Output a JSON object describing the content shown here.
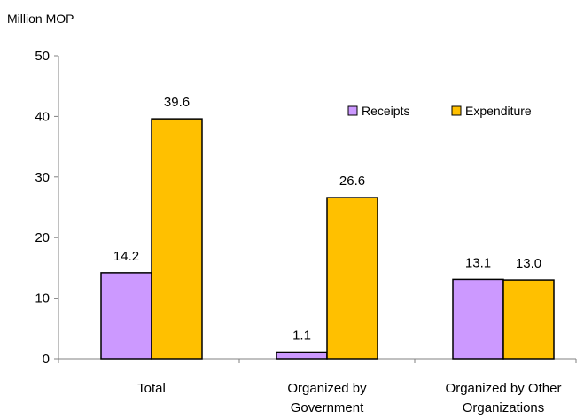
{
  "chart_data": {
    "type": "bar",
    "ylabel": "Million MOP",
    "ylim": [
      0,
      50
    ],
    "yticks": [
      0,
      10,
      20,
      30,
      40,
      50
    ],
    "grid": false,
    "legend_position": "top-right",
    "categories": [
      [
        "Total"
      ],
      [
        "Organized by",
        "Government"
      ],
      [
        "Organized by Other",
        "Organizations"
      ]
    ],
    "series": [
      {
        "name": "Receipts",
        "color": "#CC99FF",
        "values": [
          14.2,
          1.1,
          13.1
        ],
        "labels": [
          "14.2",
          "1.1",
          "13.1"
        ]
      },
      {
        "name": "Expenditure",
        "color": "#FFC000",
        "values": [
          39.6,
          26.6,
          13.0
        ],
        "labels": [
          "39.6",
          "26.6",
          "13.0"
        ]
      }
    ]
  }
}
